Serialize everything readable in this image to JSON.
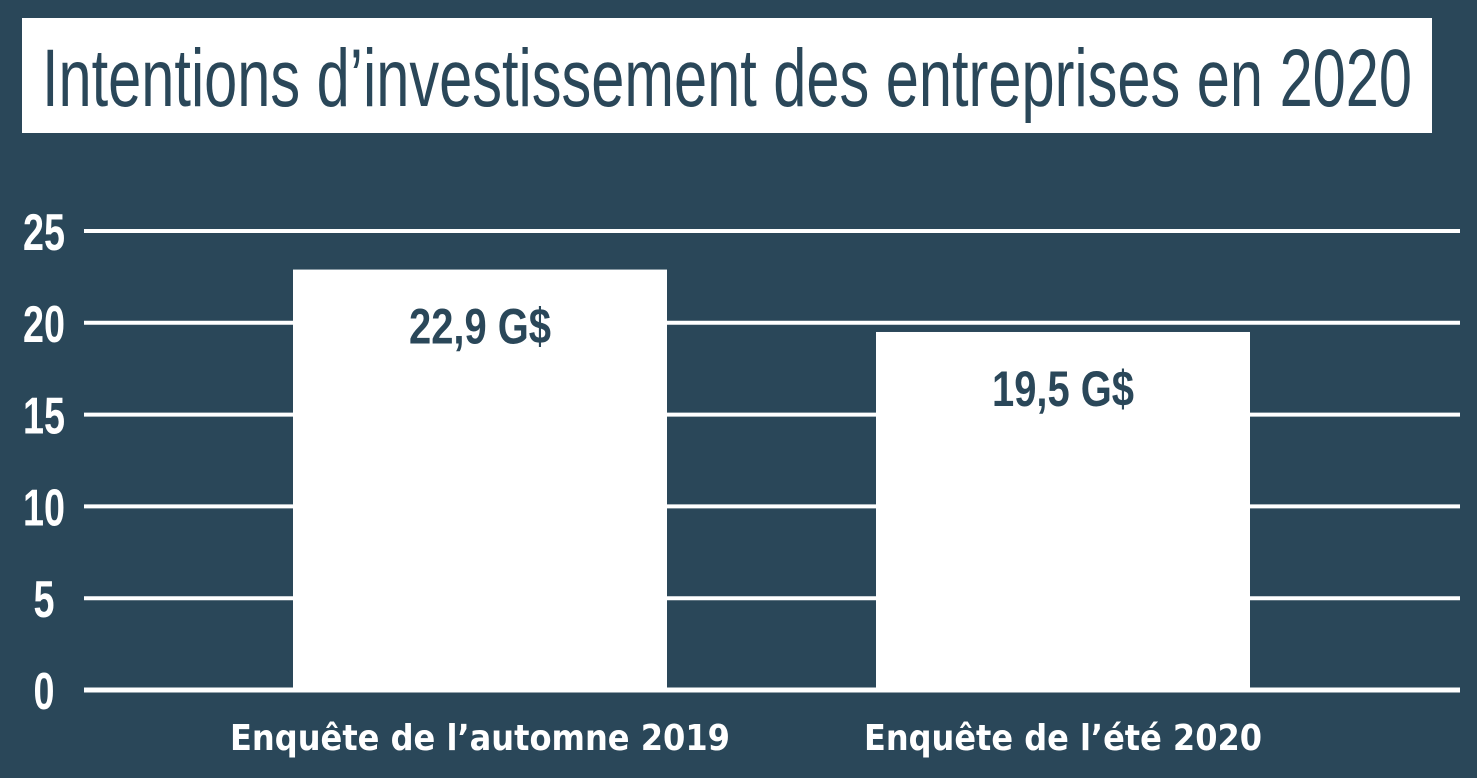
{
  "chart_data": {
    "type": "bar",
    "title": "Intentions d’investissement des entreprises en 2020",
    "categories": [
      "Enquête de l’automne 2019",
      "Enquête de l’été 2020"
    ],
    "values": [
      22.9,
      19.5
    ],
    "data_labels": [
      "22,9 G$",
      "19,5 G$"
    ],
    "xlabel": "",
    "ylabel": "",
    "ylim": [
      0,
      25
    ],
    "yticks": [
      "0",
      "5",
      "10",
      "15",
      "20",
      "25"
    ],
    "grid": true,
    "colors": {
      "background": "#2a4759",
      "bar": "#ffffff",
      "text_on_bar": "#2a4759",
      "grid": "#ffffff"
    }
  }
}
